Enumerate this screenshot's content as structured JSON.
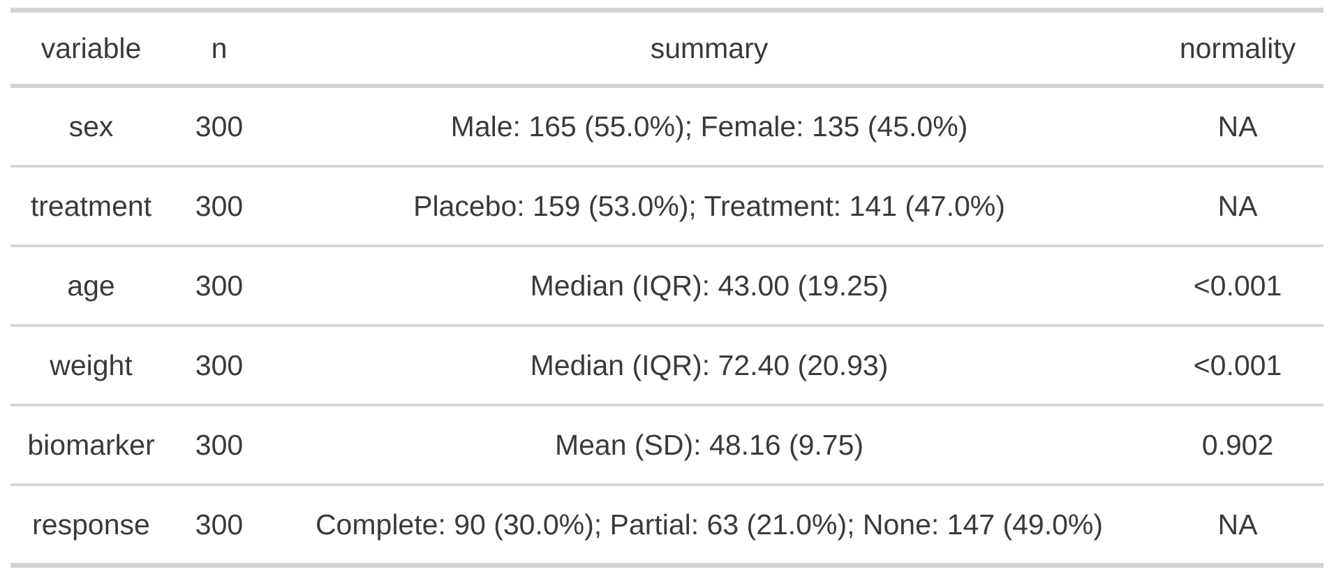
{
  "chart_data": {
    "type": "table",
    "title": "",
    "columns": [
      {
        "key": "variable",
        "label": "variable"
      },
      {
        "key": "n",
        "label": "n"
      },
      {
        "key": "summary",
        "label": "summary"
      },
      {
        "key": "normality",
        "label": "normality"
      }
    ],
    "rows": [
      {
        "variable": "sex",
        "n": "300",
        "summary": "Male: 165 (55.0%); Female: 135 (45.0%)",
        "normality": "NA"
      },
      {
        "variable": "treatment",
        "n": "300",
        "summary": "Placebo: 159 (53.0%); Treatment: 141 (47.0%)",
        "normality": "NA"
      },
      {
        "variable": "age",
        "n": "300",
        "summary": "Median (IQR): 43.00 (19.25)",
        "normality": "<0.001"
      },
      {
        "variable": "weight",
        "n": "300",
        "summary": "Median (IQR): 72.40 (20.93)",
        "normality": "<0.001"
      },
      {
        "variable": "biomarker",
        "n": "300",
        "summary": "Mean (SD): 48.16 (9.75)",
        "normality": "0.902"
      },
      {
        "variable": "response",
        "n": "300",
        "summary": "Complete: 90 (30.0%); Partial: 63 (21.0%); None: 147 (49.0%)",
        "normality": "NA"
      }
    ],
    "layout": {
      "grid": "horizontal-rules-only",
      "header_position": "top",
      "text_align": "center"
    },
    "colors": {
      "text": "#3a3a3a",
      "rule_heavy": "#d3d3d3",
      "rule_light": "#d7d7d7",
      "background": "#ffffff"
    }
  }
}
